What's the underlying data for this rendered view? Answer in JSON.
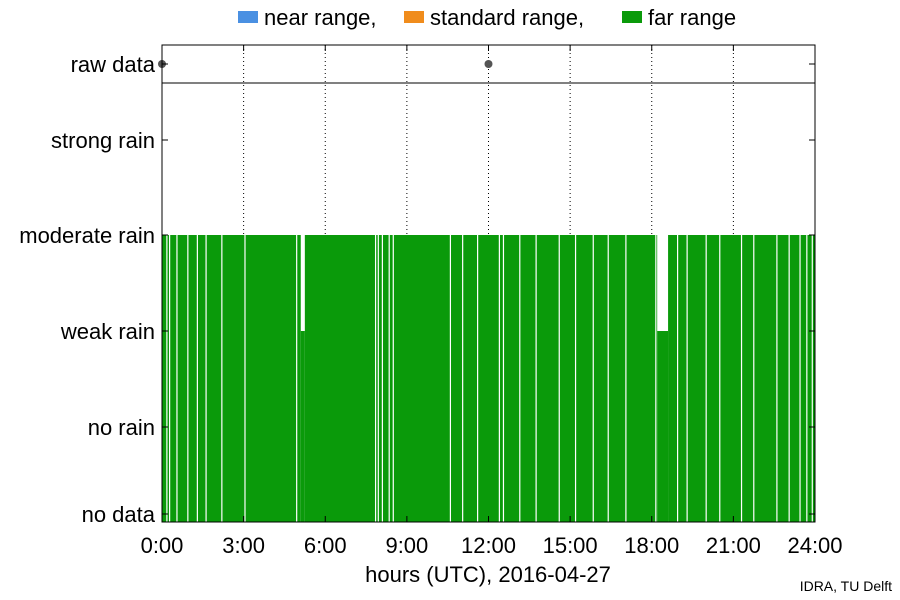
{
  "chart_data": {
    "type": "bar",
    "xlabel": "hours (UTC), 2016-04-27",
    "x_ticks": [
      "0:00",
      "3:00",
      "6:00",
      "9:00",
      "12:00",
      "15:00",
      "18:00",
      "21:00",
      "24:00"
    ],
    "xlim": [
      0,
      24
    ],
    "y_categories": [
      "no data",
      "no rain",
      "weak rain",
      "moderate rain",
      "strong rain",
      "raw data"
    ],
    "grid": "vertical dotted",
    "legend": {
      "placement": "top",
      "entries": [
        {
          "label": "near range,",
          "color": "#4a90e2"
        },
        {
          "label": "standard range,",
          "color": "#f08c1c"
        },
        {
          "label": "far range",
          "color": "#0a9a0a"
        }
      ]
    },
    "series": [
      {
        "name": "far range",
        "color": "#0a9a0a",
        "level": "moderate rain",
        "intervals": [
          [
            0.0,
            5.1
          ],
          [
            5.25,
            18.2
          ],
          [
            18.6,
            24.0
          ]
        ]
      },
      {
        "name": "far range",
        "color": "#0a9a0a",
        "level": "weak rain",
        "intervals": [
          [
            5.1,
            5.25
          ],
          [
            18.2,
            18.6
          ]
        ]
      }
    ],
    "no_data_gaps": [
      0.18,
      0.28,
      0.55,
      0.95,
      1.3,
      1.62,
      2.2,
      3.05,
      4.95,
      7.85,
      7.95,
      8.1,
      8.35,
      8.5,
      10.6,
      11.05,
      11.6,
      12.4,
      12.55,
      13.15,
      13.75,
      14.6,
      15.2,
      15.85,
      16.4,
      17.05,
      18.15,
      18.95,
      19.3,
      20.0,
      20.5,
      21.3,
      21.75,
      22.6,
      23.05,
      23.45,
      23.7,
      23.9
    ],
    "raw_data_points": [
      0.0,
      12.0
    ],
    "raw_data_color": "#555555"
  },
  "credit": "IDRA, TU Delft"
}
